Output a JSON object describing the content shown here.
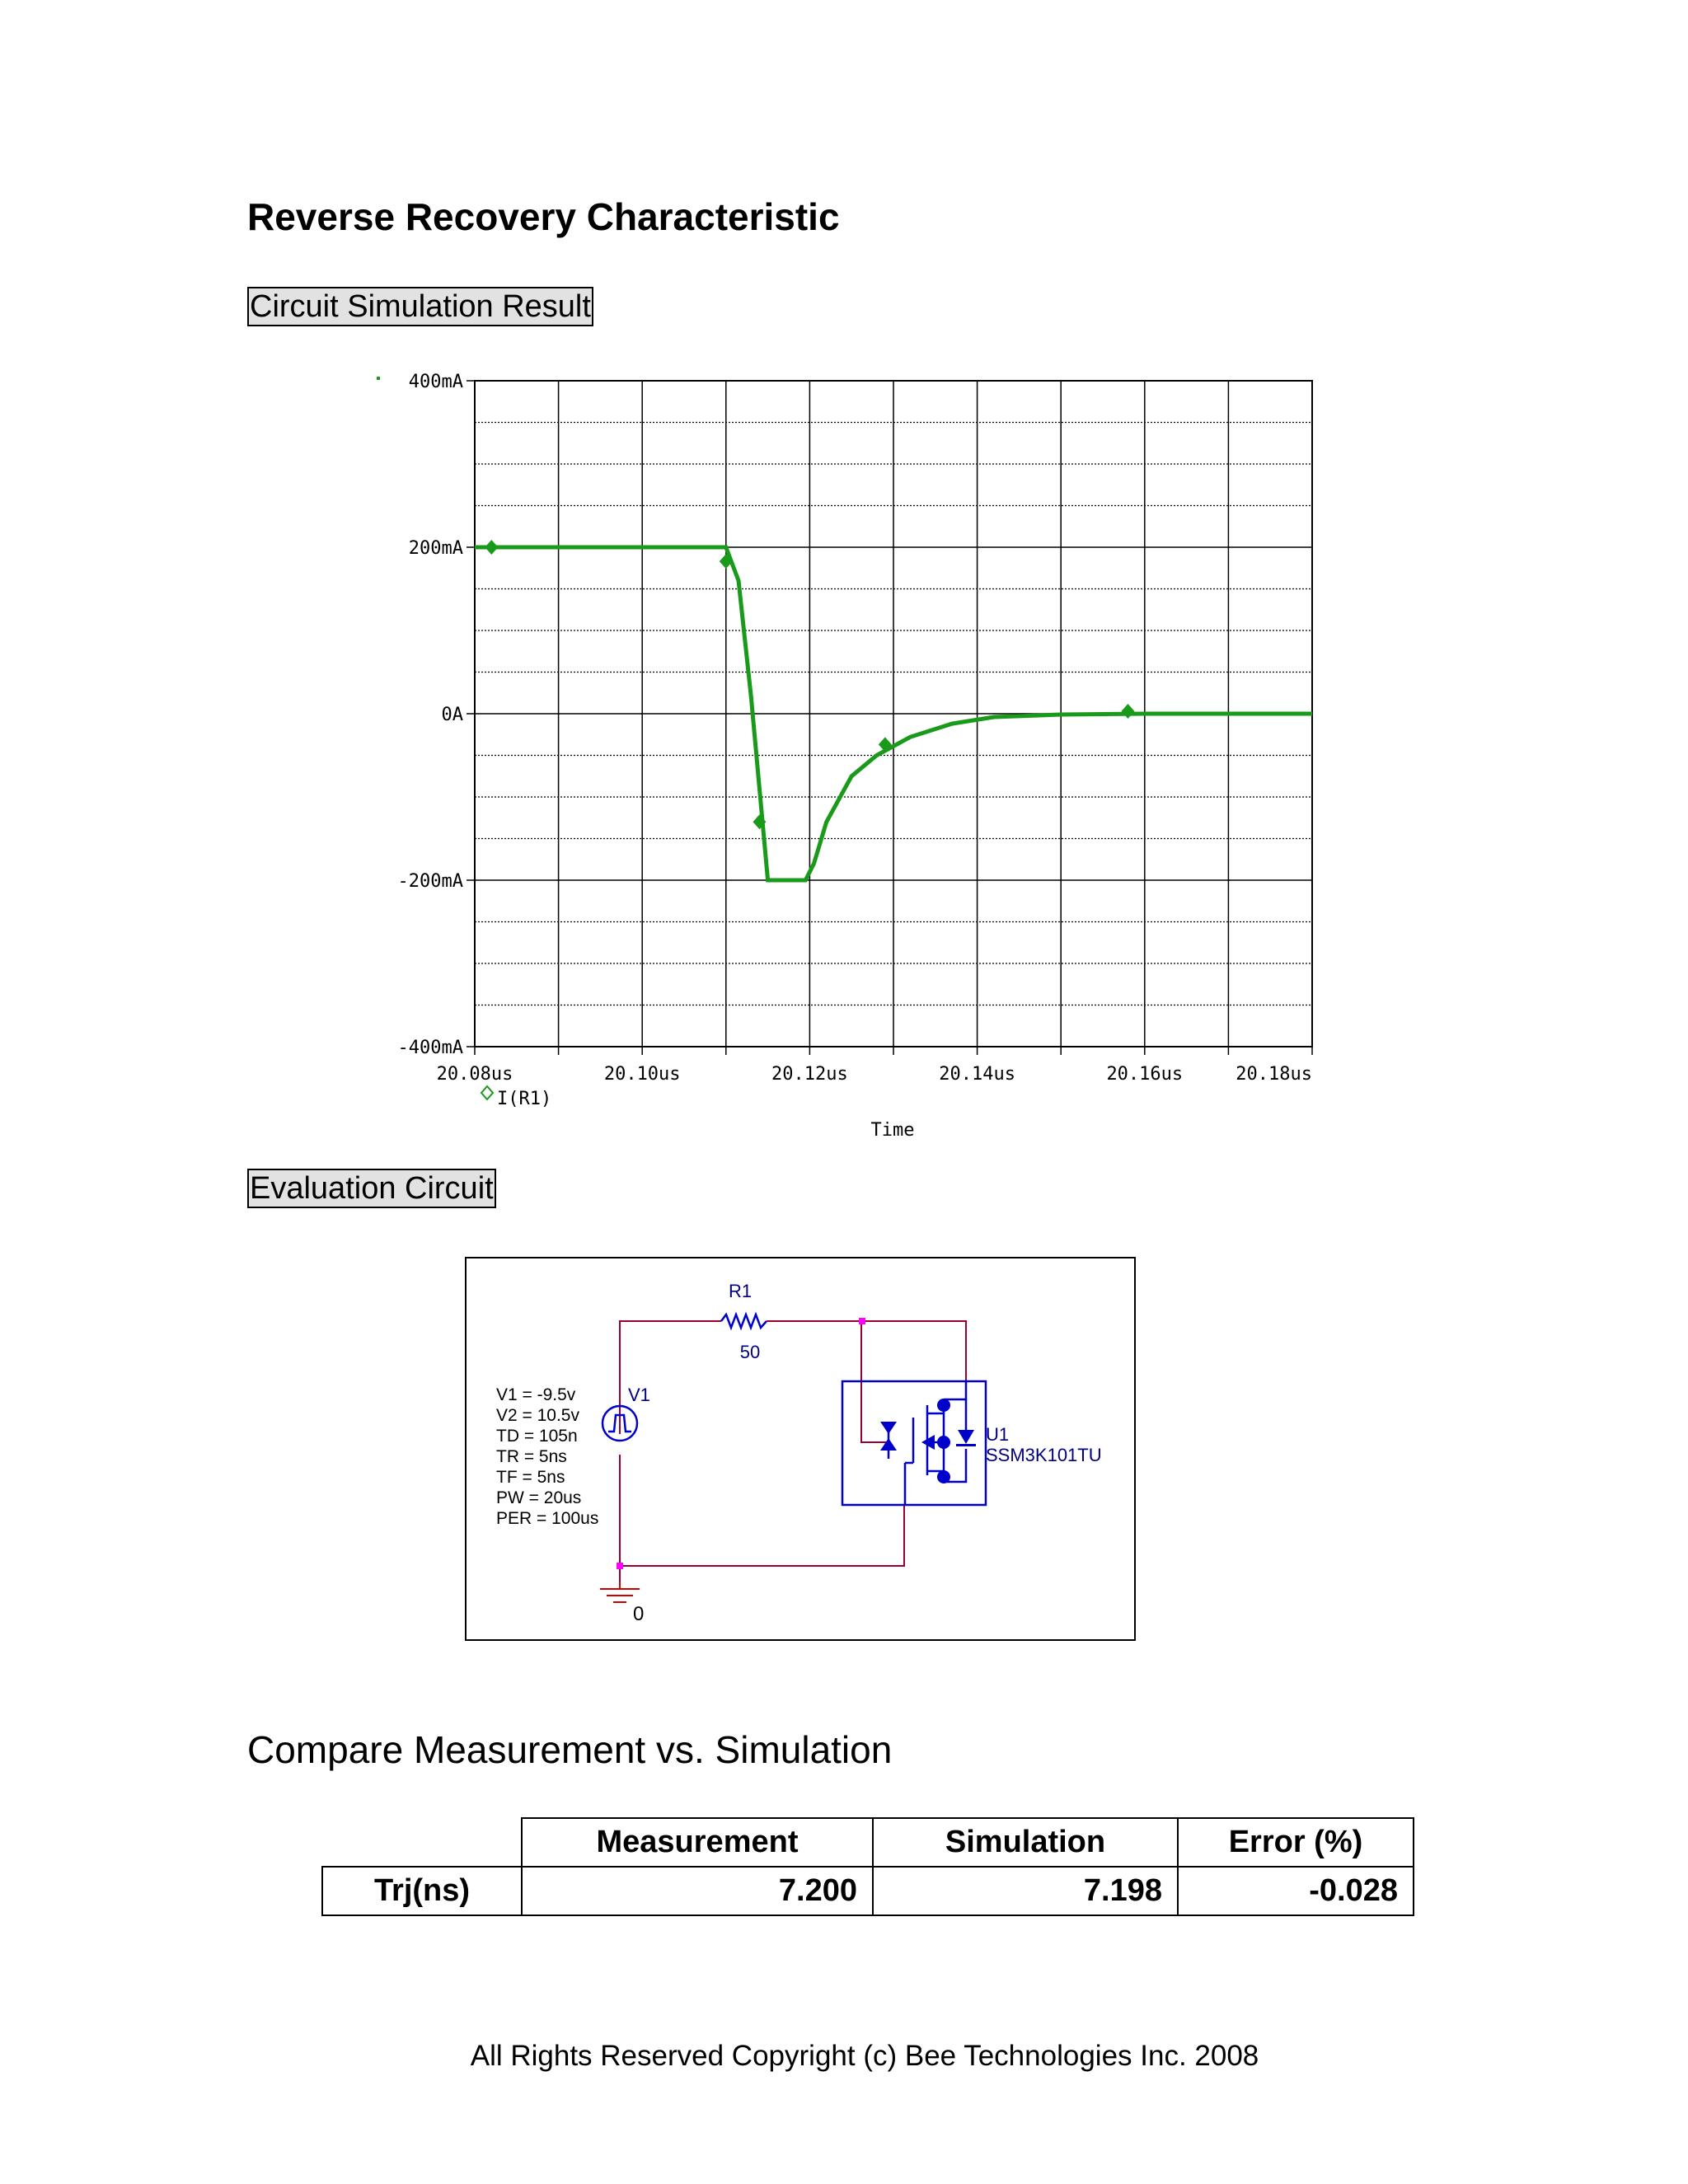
{
  "page": {
    "title": "Reverse Recovery Characteristic",
    "section_sim": "Circuit Simulation Result",
    "section_eval": "Evaluation Circuit",
    "section_compare": "Compare Measurement vs. Simulation",
    "footer": "All Rights Reserved Copyright (c) Bee Technologies Inc. 2008"
  },
  "colors": {
    "trace": "#1a9a1a",
    "wire": "#990033",
    "component": "#0000cc",
    "ground": "#cc0000",
    "node": "#ff00ff"
  },
  "chart_data": {
    "type": "line",
    "title": "",
    "xlabel": "Time",
    "ylabel": "",
    "x_unit": "us",
    "xlim": [
      20.08,
      20.18
    ],
    "ylim": [
      -400,
      400
    ],
    "x_ticks": [
      20.08,
      20.1,
      20.12,
      20.14,
      20.16,
      20.18
    ],
    "x_tick_labels": [
      "20.08us",
      "20.10us",
      "20.12us",
      "20.14us",
      "20.16us",
      "20.18us"
    ],
    "y_ticks": [
      400,
      200,
      0,
      -200,
      -400
    ],
    "y_tick_labels": [
      "400mA",
      "200mA",
      "0A",
      "-200mA",
      "-400mA"
    ],
    "grid": true,
    "legend_position": "bottom-left",
    "series": [
      {
        "name": "I(R1)",
        "color": "#1a9a1a",
        "x": [
          20.08,
          20.1,
          20.11,
          20.1115,
          20.113,
          20.115,
          20.1175,
          20.1195,
          20.1205,
          20.122,
          20.125,
          20.128,
          20.132,
          20.137,
          20.142,
          20.15,
          20.16,
          20.17,
          20.18
        ],
        "y": [
          200,
          200,
          200,
          160,
          20,
          -200,
          -200,
          -200,
          -180,
          -130,
          -75,
          -50,
          -28,
          -12,
          -4,
          -1,
          0,
          0,
          0
        ],
        "marker_x": [
          20.082,
          20.11,
          20.114,
          20.129,
          20.158
        ],
        "marker_y": [
          200,
          183,
          -130,
          -37,
          3
        ]
      }
    ]
  },
  "schematic": {
    "r1_label": "R1",
    "r1_value": "50",
    "v1_label": "V1",
    "v1_params": [
      "V1 = -9.5v",
      "V2 = 10.5v",
      "TD = 105n",
      "TR = 5ns",
      "TF = 5ns",
      "PW = 20us",
      "PER = 100us"
    ],
    "u1_label": "U1",
    "u1_part": "SSM3K101TU",
    "ground_label": "0"
  },
  "table": {
    "headers": [
      "Measurement",
      "Simulation",
      "Error (%)"
    ],
    "row_label": "Trj(ns)",
    "measurement": "7.200",
    "simulation": "7.198",
    "error": "-0.028"
  }
}
